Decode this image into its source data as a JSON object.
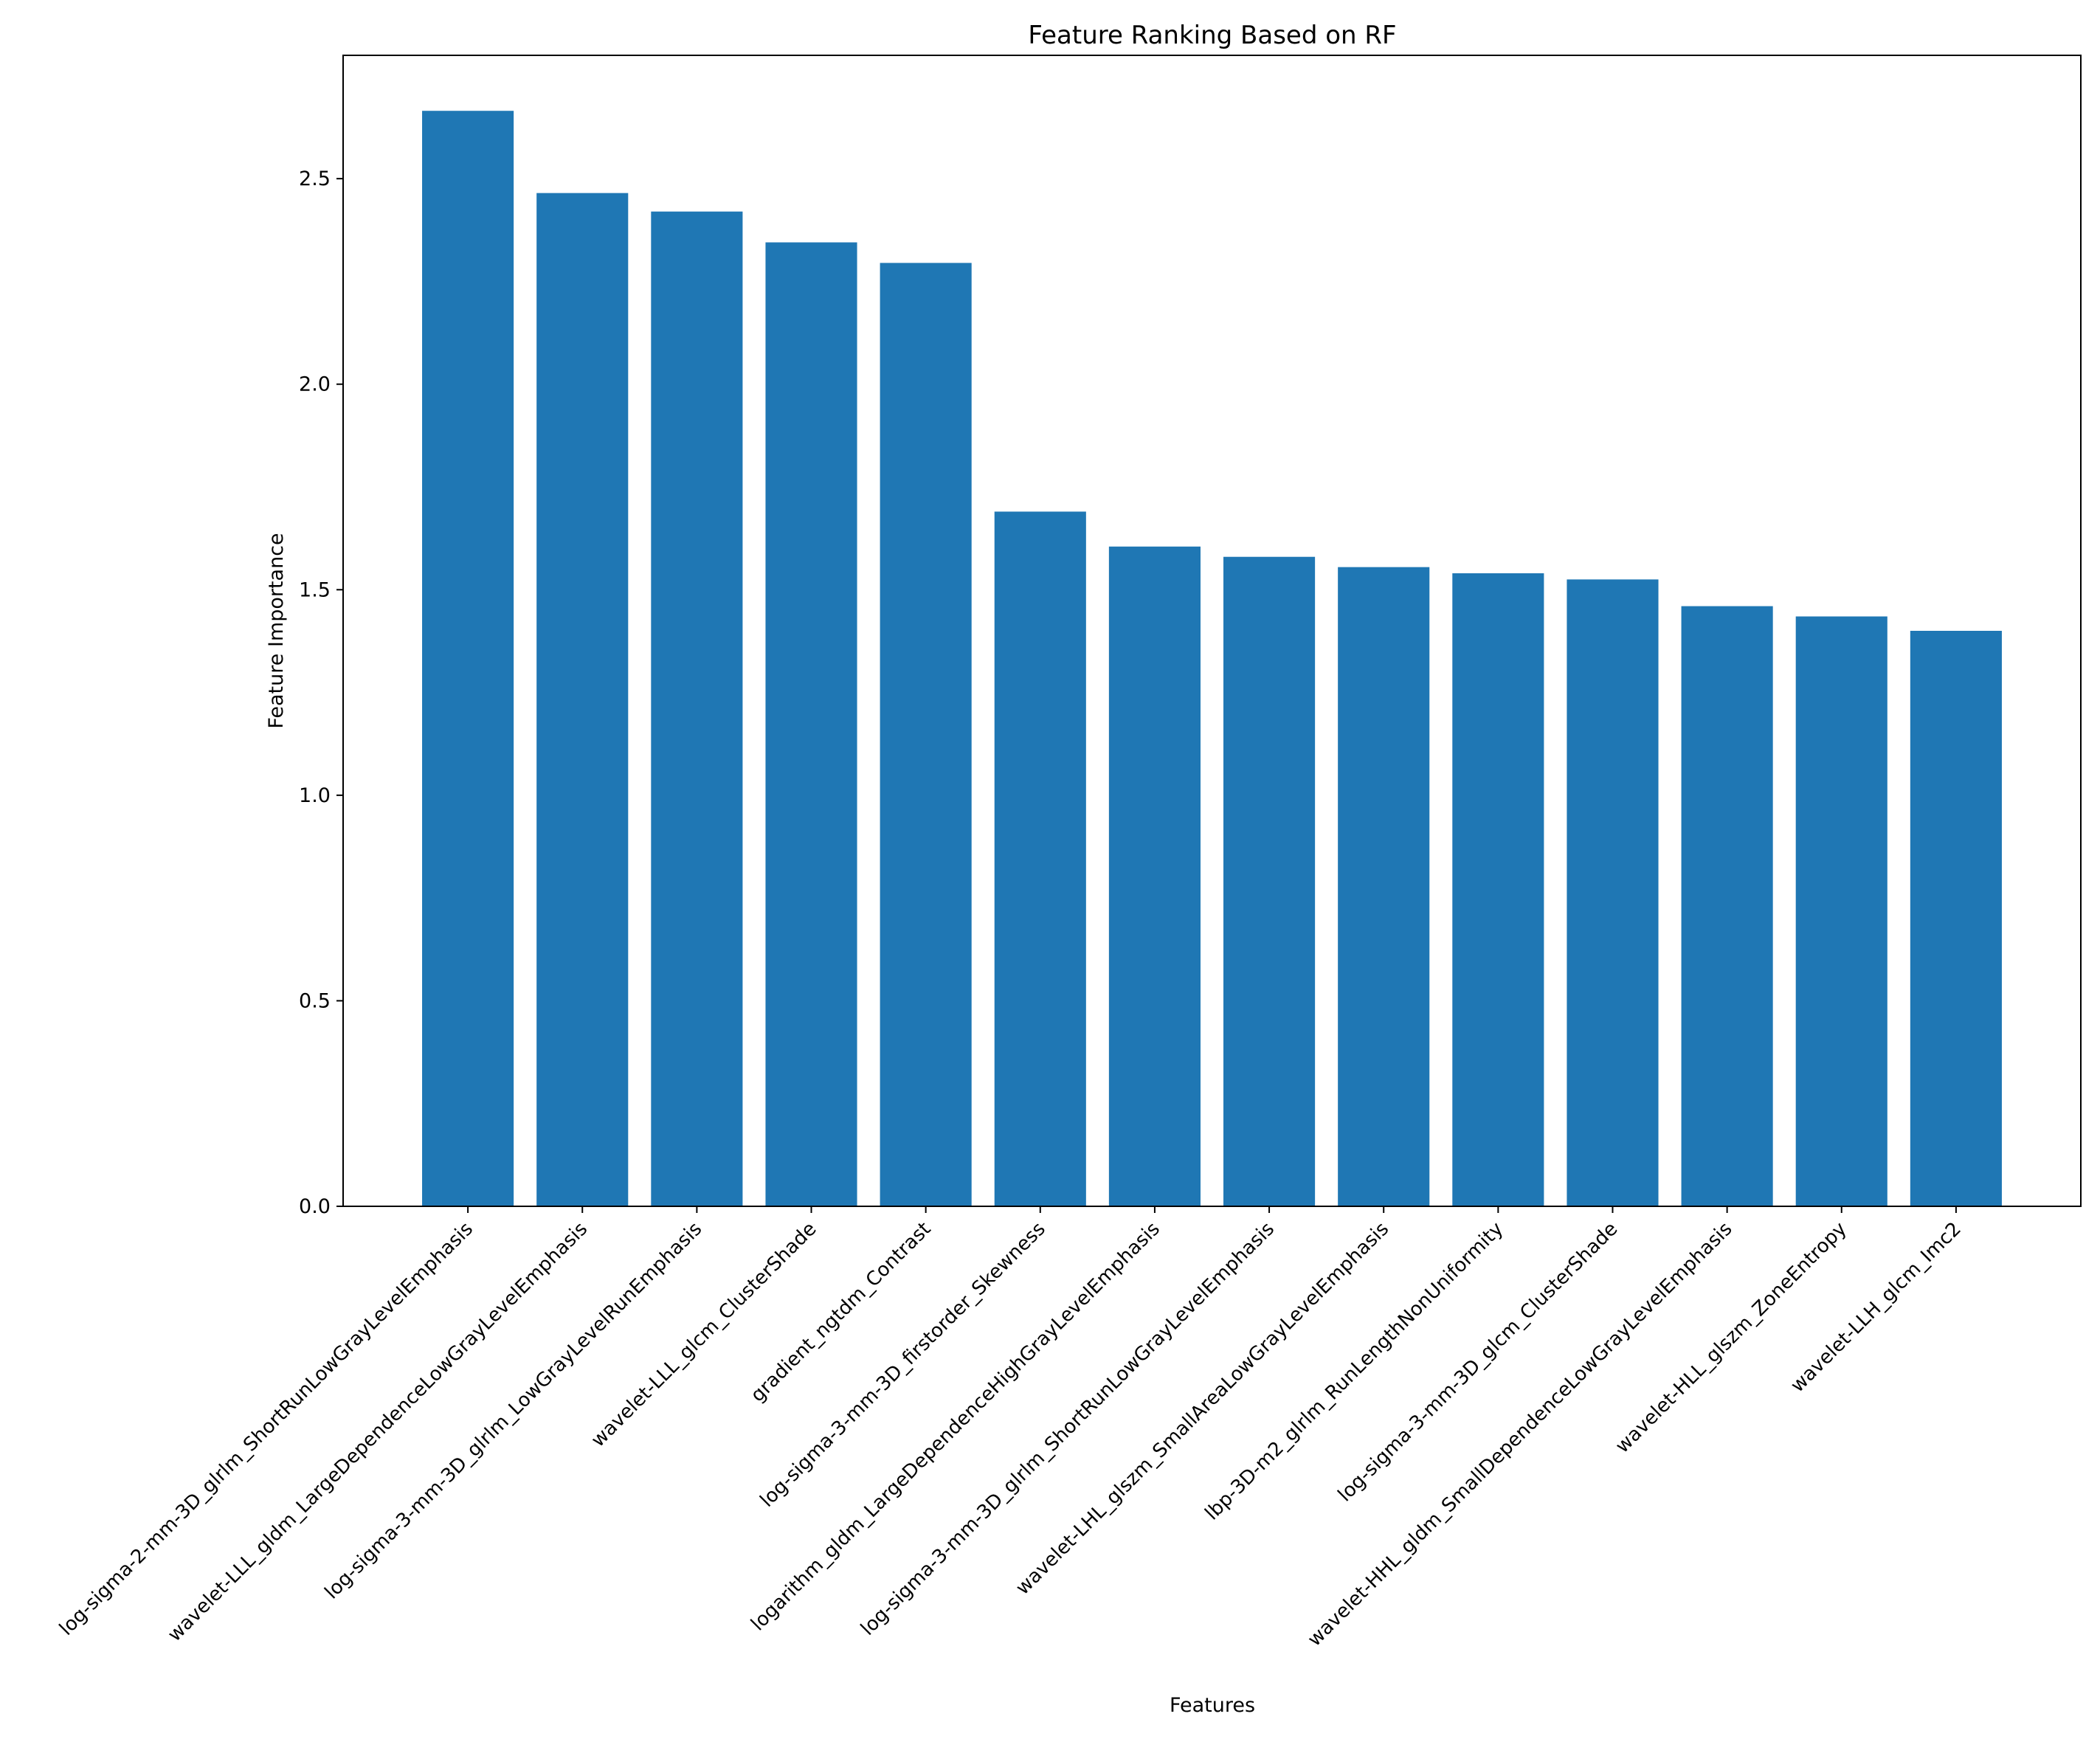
{
  "chart_data": {
    "type": "bar",
    "title": "Feature Ranking Based on RF",
    "xlabel": "Features",
    "ylabel": "Feature Importance",
    "ylim": [
      0,
      2.8
    ],
    "yticks": [
      "0.0",
      "0.5",
      "1.0",
      "1.5",
      "2.0",
      "2.5"
    ],
    "bar_color": "#1f77b4",
    "grid": false,
    "categories": [
      "log-sigma-2-mm-3D_glrlm_ShortRunLowGrayLevelEmphasis",
      "wavelet-LLL_gldm_LargeDependenceLowGrayLevelEmphasis",
      "log-sigma-3-mm-3D_glrlm_LowGrayLevelRunEmphasis",
      "wavelet-LLL_glcm_ClusterShade",
      "gradient_ngtdm_Contrast",
      "log-sigma-3-mm-3D_firstorder_Skewness",
      "logarithm_gldm_LargeDependenceHighGrayLevelEmphasis",
      "log-sigma-3-mm-3D_glrlm_ShortRunLowGrayLevelEmphasis",
      "wavelet-LHL_glszm_SmallAreaLowGrayLevelEmphasis",
      "lbp-3D-m2_glrlm_RunLengthNonUniformity",
      "log-sigma-3-mm-3D_glcm_ClusterShade",
      "wavelet-HHL_gldm_SmallDependenceLowGrayLevelEmphasis",
      "wavelet-HLL_glszm_ZoneEntropy",
      "wavelet-LLH_glcm_Imc2"
    ],
    "values": [
      2.665,
      2.465,
      2.42,
      2.345,
      2.295,
      1.69,
      1.605,
      1.58,
      1.555,
      1.54,
      1.525,
      1.46,
      1.435,
      1.4
    ]
  }
}
